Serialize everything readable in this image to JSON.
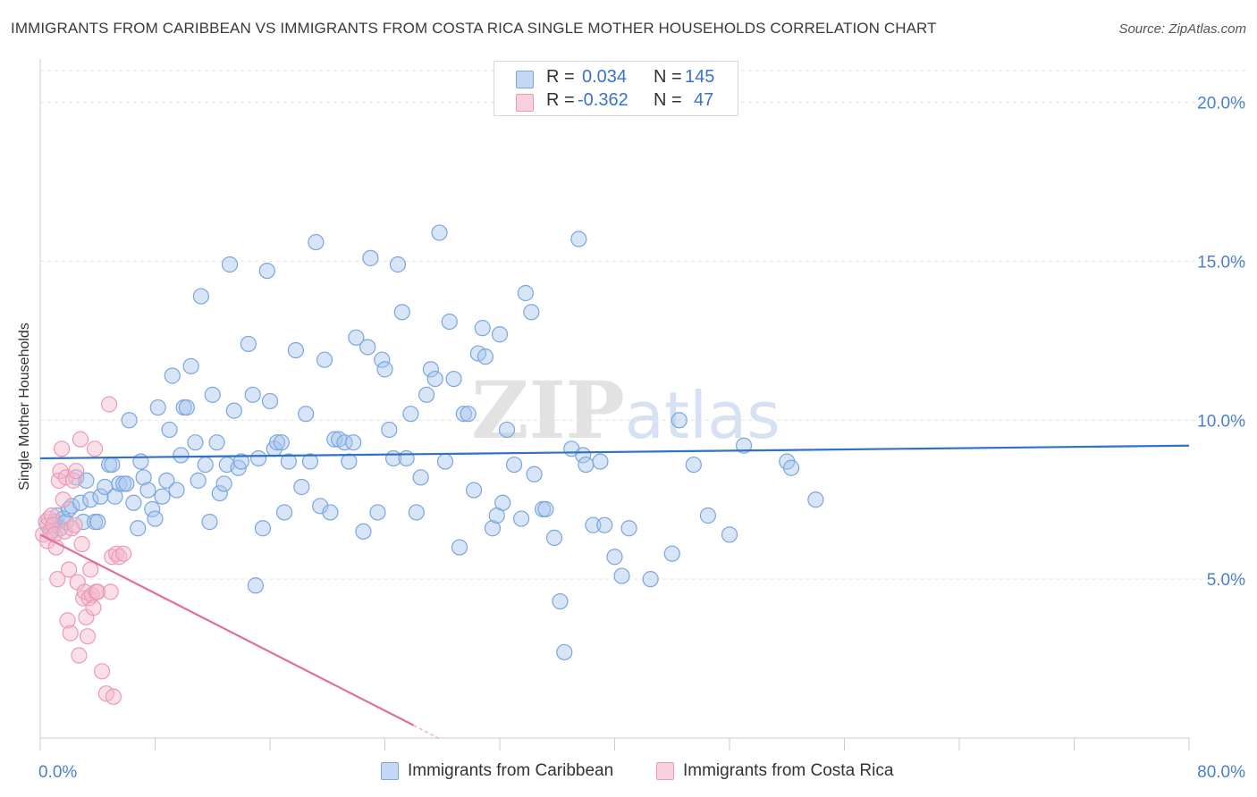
{
  "header": {
    "title": "IMMIGRANTS FROM CARIBBEAN VS IMMIGRANTS FROM COSTA RICA SINGLE MOTHER HOUSEHOLDS CORRELATION CHART",
    "source": "Source: ZipAtlas.com"
  },
  "watermark": "ZIPatlas",
  "legend": {
    "rows": [
      {
        "r_label": "R =",
        "r_value": "0.034",
        "n_label": "N =",
        "n_value": "145"
      },
      {
        "r_label": "R =",
        "r_value": "-0.362",
        "n_label": "N =",
        "n_value": "47"
      }
    ]
  },
  "bottom_legend": {
    "items": [
      {
        "label": "Immigrants from Caribbean"
      },
      {
        "label": "Immigrants from Costa Rica"
      }
    ]
  },
  "colors": {
    "blue_fill": "#a9c6ee",
    "blue_stroke": "#7aa6df",
    "blue_line": "#2f72c8",
    "pink_fill": "#f5b8cc",
    "pink_stroke": "#ec9ab5",
    "pink_line": "#e0709a",
    "axis_text": "#4a7fd0",
    "grid": "#e3e3e3"
  },
  "chart_data": {
    "type": "scatter",
    "title": "IMMIGRANTS FROM CARIBBEAN VS IMMIGRANTS FROM COSTA RICA SINGLE MOTHER HOUSEHOLDS CORRELATION CHART",
    "xlabel": "",
    "ylabel": "Single Mother Households",
    "xlim": [
      0,
      80
    ],
    "ylim": [
      0,
      21
    ],
    "x_tick_labels": [
      "0.0%",
      "80.0%"
    ],
    "y_ticks": [
      5,
      10,
      15,
      20
    ],
    "y_tick_labels": [
      "5.0%",
      "10.0%",
      "15.0%",
      "20.0%"
    ],
    "grid": true,
    "legend_position": "top-center",
    "series": [
      {
        "name": "Immigrants from Caribbean",
        "color": "#a9c6ee",
        "trend": {
          "x": [
            0,
            80
          ],
          "y": [
            8.8,
            9.2
          ]
        },
        "points": [
          [
            0.5,
            6.7
          ],
          [
            0.8,
            6.5
          ],
          [
            1.0,
            6.8
          ],
          [
            1.2,
            7.0
          ],
          [
            1.4,
            6.6
          ],
          [
            1.6,
            6.9
          ],
          [
            1.8,
            6.8
          ],
          [
            2.0,
            7.2
          ],
          [
            2.2,
            7.3
          ],
          [
            2.5,
            8.2
          ],
          [
            2.8,
            7.4
          ],
          [
            3.0,
            6.8
          ],
          [
            3.2,
            8.1
          ],
          [
            3.5,
            7.5
          ],
          [
            3.8,
            6.8
          ],
          [
            4.0,
            6.8
          ],
          [
            4.2,
            7.6
          ],
          [
            4.5,
            7.9
          ],
          [
            4.8,
            8.6
          ],
          [
            5.0,
            8.6
          ],
          [
            5.2,
            7.6
          ],
          [
            5.5,
            8.0
          ],
          [
            5.8,
            8.0
          ],
          [
            6.0,
            8.0
          ],
          [
            6.2,
            10.0
          ],
          [
            6.5,
            7.4
          ],
          [
            6.8,
            6.6
          ],
          [
            7.0,
            8.7
          ],
          [
            7.2,
            8.2
          ],
          [
            7.5,
            7.8
          ],
          [
            7.8,
            7.2
          ],
          [
            8.0,
            6.9
          ],
          [
            8.2,
            10.4
          ],
          [
            8.5,
            7.6
          ],
          [
            8.8,
            8.1
          ],
          [
            9.0,
            9.7
          ],
          [
            9.2,
            11.4
          ],
          [
            9.5,
            7.8
          ],
          [
            9.8,
            8.9
          ],
          [
            10.0,
            10.4
          ],
          [
            10.2,
            10.4
          ],
          [
            10.5,
            11.7
          ],
          [
            10.8,
            9.3
          ],
          [
            11.0,
            8.1
          ],
          [
            11.2,
            13.9
          ],
          [
            11.5,
            8.6
          ],
          [
            11.8,
            6.8
          ],
          [
            12.0,
            10.8
          ],
          [
            12.3,
            9.3
          ],
          [
            12.5,
            7.7
          ],
          [
            12.8,
            8.0
          ],
          [
            13.0,
            8.6
          ],
          [
            13.2,
            14.9
          ],
          [
            13.5,
            10.3
          ],
          [
            13.8,
            8.5
          ],
          [
            14.0,
            8.7
          ],
          [
            14.5,
            12.4
          ],
          [
            14.8,
            10.8
          ],
          [
            15.0,
            4.8
          ],
          [
            15.2,
            8.8
          ],
          [
            15.5,
            6.6
          ],
          [
            15.8,
            14.7
          ],
          [
            16.0,
            10.6
          ],
          [
            16.3,
            9.1
          ],
          [
            16.5,
            9.3
          ],
          [
            16.8,
            9.3
          ],
          [
            17.0,
            7.1
          ],
          [
            17.3,
            8.7
          ],
          [
            17.8,
            12.2
          ],
          [
            18.2,
            7.9
          ],
          [
            18.5,
            10.2
          ],
          [
            18.8,
            8.7
          ],
          [
            19.2,
            15.6
          ],
          [
            19.5,
            7.3
          ],
          [
            19.8,
            11.9
          ],
          [
            20.2,
            7.1
          ],
          [
            20.5,
            9.4
          ],
          [
            20.8,
            9.4
          ],
          [
            21.2,
            9.3
          ],
          [
            21.5,
            8.7
          ],
          [
            21.8,
            9.3
          ],
          [
            22.0,
            12.6
          ],
          [
            22.5,
            6.5
          ],
          [
            22.8,
            12.3
          ],
          [
            23.0,
            15.1
          ],
          [
            23.5,
            7.1
          ],
          [
            23.8,
            11.9
          ],
          [
            24.0,
            11.6
          ],
          [
            24.3,
            9.7
          ],
          [
            24.6,
            8.8
          ],
          [
            24.9,
            14.9
          ],
          [
            25.2,
            13.4
          ],
          [
            25.5,
            8.8
          ],
          [
            25.8,
            10.2
          ],
          [
            26.2,
            7.1
          ],
          [
            26.5,
            8.2
          ],
          [
            26.9,
            10.8
          ],
          [
            27.2,
            11.6
          ],
          [
            27.5,
            11.3
          ],
          [
            27.8,
            15.9
          ],
          [
            28.2,
            8.7
          ],
          [
            28.5,
            13.1
          ],
          [
            28.8,
            11.3
          ],
          [
            29.2,
            6.0
          ],
          [
            29.5,
            10.2
          ],
          [
            29.8,
            10.2
          ],
          [
            30.2,
            7.8
          ],
          [
            30.5,
            12.1
          ],
          [
            30.8,
            12.9
          ],
          [
            31.0,
            12.0
          ],
          [
            31.5,
            6.6
          ],
          [
            31.8,
            7.0
          ],
          [
            32.0,
            12.7
          ],
          [
            32.2,
            7.4
          ],
          [
            32.5,
            9.7
          ],
          [
            33.0,
            8.6
          ],
          [
            33.5,
            6.9
          ],
          [
            33.8,
            14.0
          ],
          [
            34.2,
            13.4
          ],
          [
            34.4,
            8.3
          ],
          [
            35.0,
            7.2
          ],
          [
            35.2,
            7.2
          ],
          [
            35.8,
            6.3
          ],
          [
            36.2,
            4.3
          ],
          [
            36.5,
            2.7
          ],
          [
            37.0,
            9.1
          ],
          [
            37.5,
            15.7
          ],
          [
            37.8,
            8.9
          ],
          [
            38.0,
            8.6
          ],
          [
            38.5,
            6.7
          ],
          [
            39.0,
            8.7
          ],
          [
            39.3,
            6.7
          ],
          [
            40.0,
            5.7
          ],
          [
            40.5,
            5.1
          ],
          [
            41.0,
            6.6
          ],
          [
            42.5,
            5.0
          ],
          [
            44.0,
            5.8
          ],
          [
            44.5,
            10.0
          ],
          [
            45.5,
            8.6
          ],
          [
            46.5,
            7.0
          ],
          [
            48.0,
            6.4
          ],
          [
            49.0,
            9.2
          ],
          [
            52.0,
            8.7
          ],
          [
            52.3,
            8.5
          ],
          [
            54.0,
            7.5
          ]
        ]
      },
      {
        "name": "Immigrants from Costa Rica",
        "color": "#f5b8cc",
        "trend": {
          "x": [
            0,
            26
          ],
          "y": [
            6.4,
            0.4
          ]
        },
        "points": [
          [
            0.2,
            6.4
          ],
          [
            0.4,
            6.8
          ],
          [
            0.5,
            6.2
          ],
          [
            0.6,
            6.9
          ],
          [
            0.7,
            6.5
          ],
          [
            0.8,
            7.0
          ],
          [
            0.9,
            6.7
          ],
          [
            1.0,
            6.4
          ],
          [
            1.1,
            6.0
          ],
          [
            1.2,
            5.0
          ],
          [
            1.3,
            8.1
          ],
          [
            1.4,
            8.4
          ],
          [
            1.5,
            9.1
          ],
          [
            1.6,
            7.5
          ],
          [
            1.7,
            6.5
          ],
          [
            1.8,
            8.2
          ],
          [
            1.9,
            3.7
          ],
          [
            2.0,
            5.3
          ],
          [
            2.1,
            3.3
          ],
          [
            2.2,
            6.6
          ],
          [
            2.3,
            8.1
          ],
          [
            2.4,
            6.7
          ],
          [
            2.5,
            8.4
          ],
          [
            2.6,
            4.9
          ],
          [
            2.7,
            2.6
          ],
          [
            2.8,
            9.4
          ],
          [
            2.9,
            6.1
          ],
          [
            3.0,
            4.4
          ],
          [
            3.1,
            4.6
          ],
          [
            3.2,
            3.8
          ],
          [
            3.3,
            3.2
          ],
          [
            3.4,
            4.4
          ],
          [
            3.5,
            5.3
          ],
          [
            3.6,
            4.5
          ],
          [
            3.7,
            4.1
          ],
          [
            3.8,
            9.1
          ],
          [
            3.9,
            4.6
          ],
          [
            4.0,
            4.6
          ],
          [
            4.3,
            2.1
          ],
          [
            4.6,
            1.4
          ],
          [
            4.8,
            10.5
          ],
          [
            4.9,
            4.6
          ],
          [
            5.0,
            5.7
          ],
          [
            5.1,
            1.3
          ],
          [
            5.3,
            5.8
          ],
          [
            5.5,
            5.7
          ],
          [
            5.8,
            5.8
          ]
        ]
      }
    ]
  }
}
